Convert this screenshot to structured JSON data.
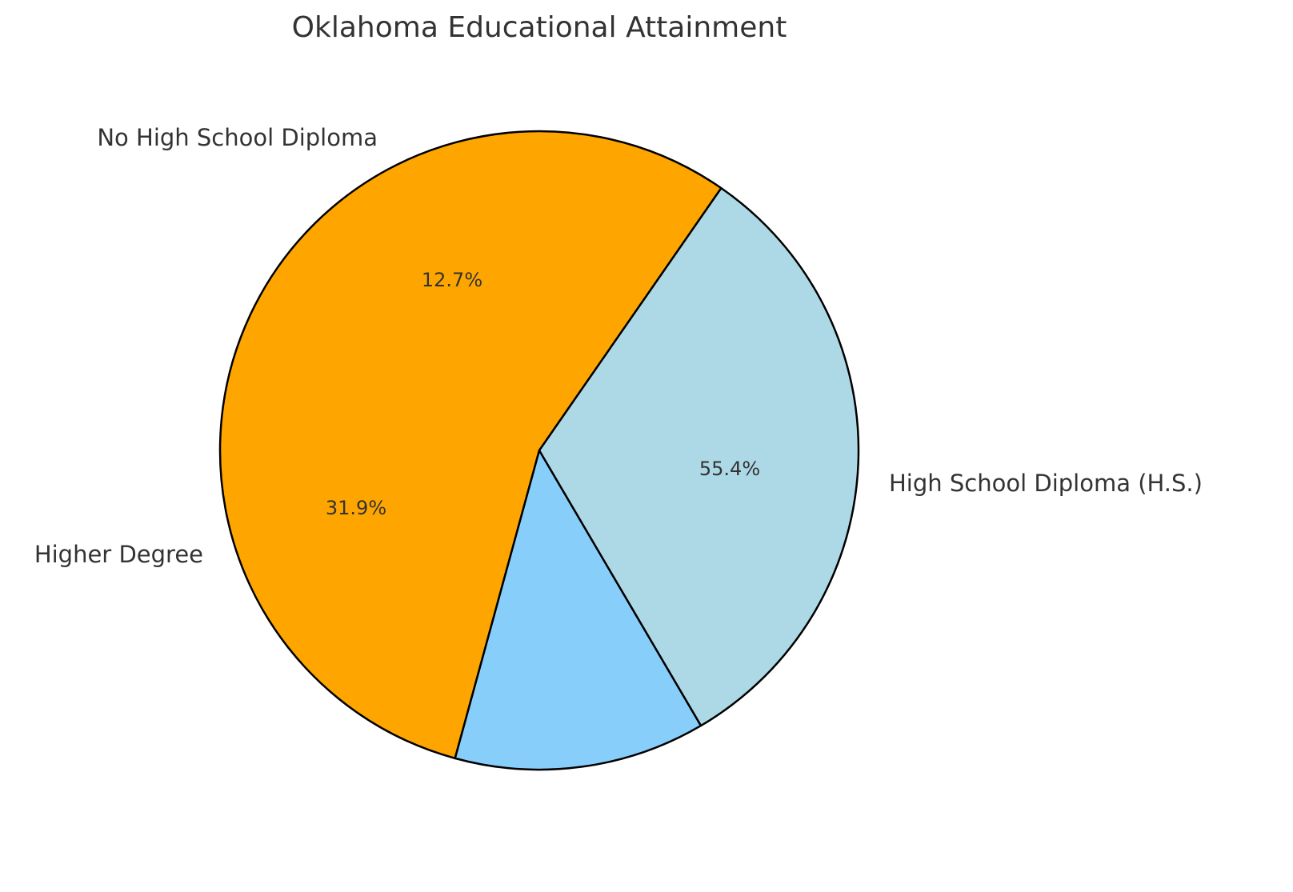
{
  "title": "Oklahoma Educational Attainment",
  "chart_data": {
    "type": "pie",
    "title": "Oklahoma Educational Attainment",
    "categories": [
      "High School Diploma (H.S.)",
      "No High School Diploma",
      "Higher Degree"
    ],
    "values": [
      55.4,
      12.7,
      31.9
    ],
    "labels_pct": [
      "55.4%",
      "12.7%",
      "31.9%"
    ],
    "colors": [
      "#FFA500",
      "#87CEFA",
      "#ADD8E6"
    ],
    "edgecolor": "#000000",
    "legend": "none",
    "xlabel": "",
    "ylabel": ""
  },
  "slices": [
    {
      "label": "High School Diploma (H.S.)",
      "pct": "55.4%",
      "color": "#FFA500"
    },
    {
      "label": "No High School Diploma",
      "pct": "12.7%",
      "color": "#87CEFA"
    },
    {
      "label": "Higher Degree",
      "pct": "31.9%",
      "color": "#ADD8E6"
    }
  ]
}
